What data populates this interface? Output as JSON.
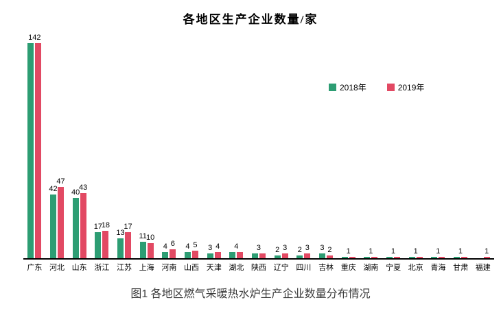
{
  "chart": {
    "title": "各地区生产企业数量/家",
    "legend": [
      {
        "label": "2018年",
        "color": "#2D9D73"
      },
      {
        "label": "2019年",
        "color": "#E24963"
      }
    ],
    "axis_line_color": "#000000",
    "value_label_color": "#000000"
  },
  "caption": "图1 各地区燃气采暖热水炉生产企业数量分布情况",
  "chart_data": {
    "type": "bar",
    "title": "各地区生产企业数量/家",
    "categories": [
      "广东",
      "河北",
      "山东",
      "浙江",
      "江苏",
      "上海",
      "河南",
      "山西",
      "天津",
      "湖北",
      "陕西",
      "辽宁",
      "四川",
      "吉林",
      "重庆",
      "湖南",
      "宁夏",
      "北京",
      "青海",
      "甘肃",
      "福建"
    ],
    "series": [
      {
        "name": "2018年",
        "color": "#2D9D73",
        "values": [
          142,
          42,
          40,
          17,
          13,
          11,
          4,
          4,
          3,
          4,
          3,
          2,
          2,
          3,
          1,
          1,
          1,
          1,
          1,
          1,
          0
        ]
      },
      {
        "name": "2019年",
        "color": "#E24963",
        "values": [
          142,
          47,
          43,
          18,
          17,
          10,
          6,
          5,
          4,
          4,
          3,
          3,
          3,
          2,
          1,
          1,
          1,
          1,
          1,
          1,
          1
        ]
      }
    ],
    "xlabel": "",
    "ylabel": "",
    "ylim": [
      0,
      145
    ],
    "grid": false,
    "value_labels": true,
    "legend_position": "upper-right-inside"
  }
}
